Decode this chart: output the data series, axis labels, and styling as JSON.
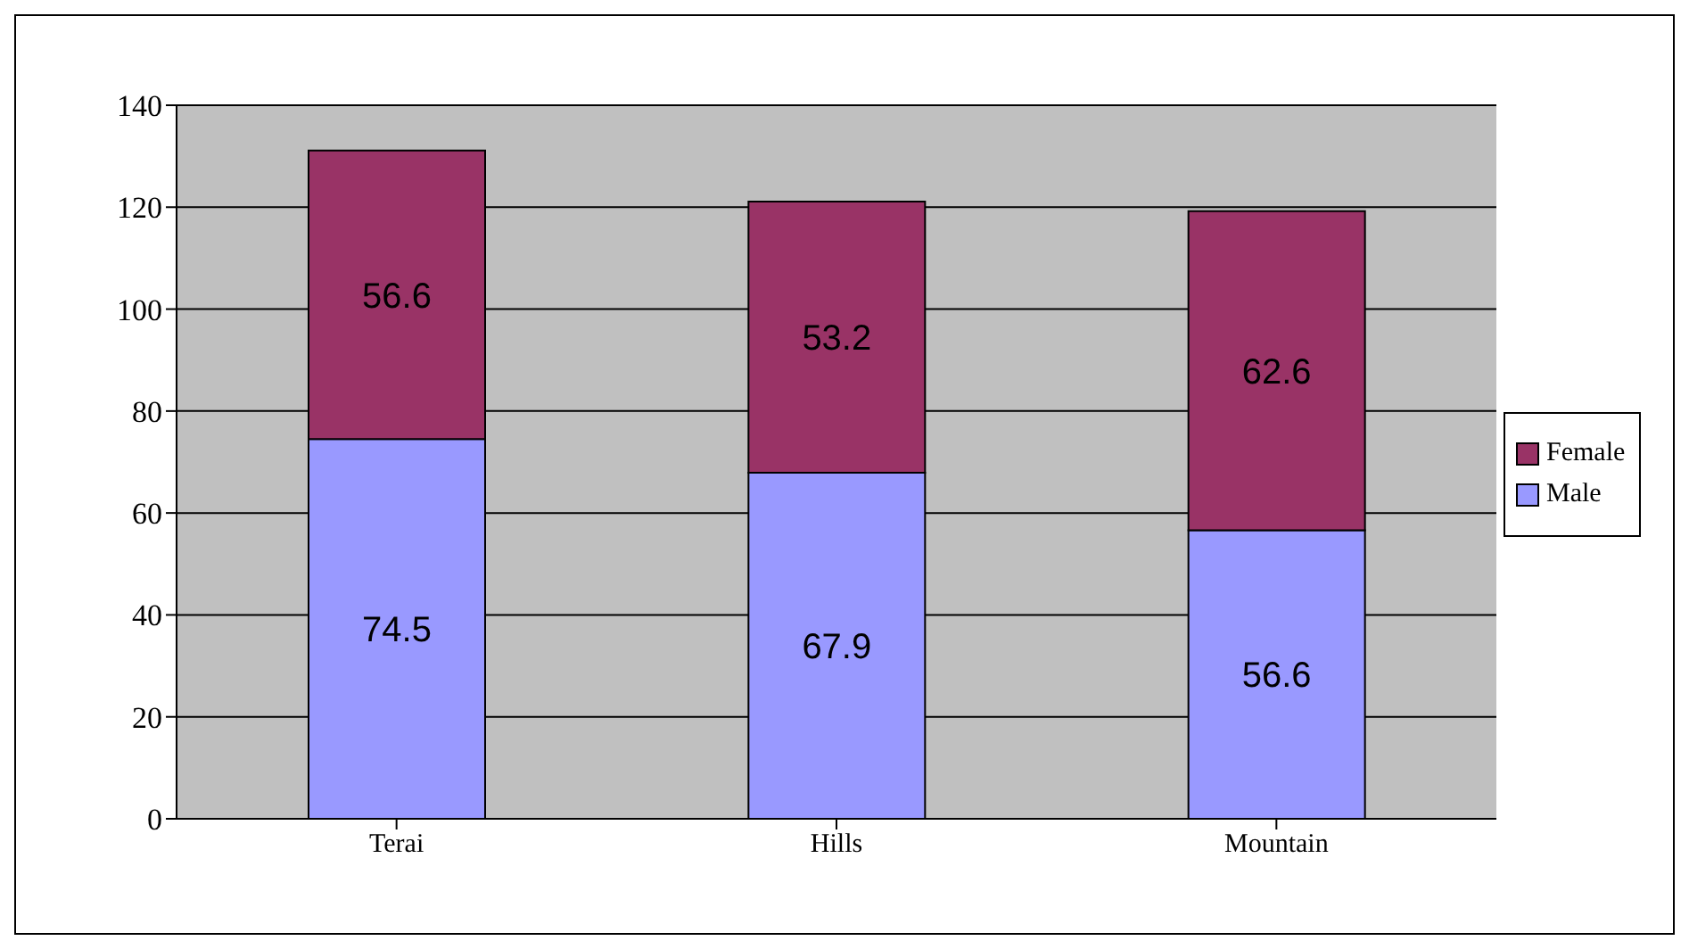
{
  "chart_data": {
    "type": "bar",
    "stacked": true,
    "categories": [
      "Terai",
      "Hills",
      "Mountain"
    ],
    "series": [
      {
        "name": "Male",
        "color": "#9999ff",
        "values": [
          74.5,
          67.9,
          56.6
        ]
      },
      {
        "name": "Female",
        "color": "#993366",
        "values": [
          56.6,
          53.2,
          62.6
        ]
      }
    ],
    "ylim": [
      0,
      140
    ],
    "yticks": [
      0,
      20,
      40,
      60,
      80,
      100,
      120,
      140
    ],
    "grid": "y",
    "legend": "right",
    "data_labels": true
  }
}
